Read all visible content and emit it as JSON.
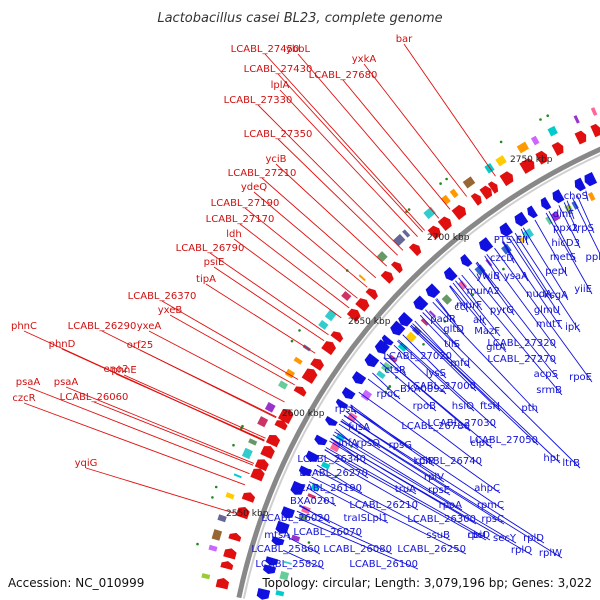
{
  "title": "Lactobacillus casei BL23, complete genome",
  "footer": {
    "accession": "Accession: NC_010999",
    "summary": "Topology: circular; Length: 3,079,196 bp; Genes: 3,022"
  },
  "colors": {
    "forward": "#e01010",
    "reverse": "#1010e0",
    "backbone": "#888888"
  },
  "kbp_labels": [
    "2750 kbp",
    "2700 kbp",
    "2650 kbp",
    "2600 kbp",
    "2550 kbp"
  ],
  "forward_labels": [
    "bar",
    "yxkA",
    "LCABL_27450",
    "ybbL",
    "LCABL_27680",
    "LCABL_27430",
    "lplA",
    "LCABL_27330",
    "LCABL_27350",
    "yciB",
    "LCABL_27210",
    "ydeQ",
    "LCABL_27190",
    "LCABL_27170",
    "ldh",
    "LCABL_26790",
    "psiE",
    "tipA",
    "LCABL_26370",
    "yxeB",
    "phnC",
    "LCABL_26290",
    "yxeA",
    "phnD",
    "orf25",
    "eno2",
    "phnE",
    "psaA",
    "psaA",
    "LCABL_26060",
    "czcR",
    "yqiG"
  ],
  "reverse_labels": [
    "choS",
    "dinF",
    "ppx2",
    "trpS",
    "hicD3",
    "metS",
    "ppk",
    "pepI",
    "yiiE",
    "PTS-EII",
    "czcD",
    "ywiB",
    "ysaA",
    "nudA",
    "ksgA",
    "murA2",
    "pyrG",
    "glmU",
    "murF",
    "alr",
    "mutT",
    "ipk",
    "padR",
    "ccl",
    "gltD",
    "MazF",
    "gltA",
    "LCABL_27320",
    "LCABL_27270",
    "tilS",
    "mfd",
    "LCABL_27020",
    "acpS",
    "rpoE",
    "ctsR",
    "lysS",
    "srmB",
    "BXA0092",
    "LCABL_27000",
    "rpoC",
    "rpoB",
    "hslO",
    "ftsH",
    "pth",
    "rpsL",
    "LCABL_27030",
    "fusA",
    "LCABL_26780",
    "infA",
    "rpsO",
    "rpsG",
    "clpC",
    "LCABL_27050",
    "hpt",
    "ltrB",
    "LCABL_26340",
    "rplP",
    "LCABL_26740",
    "LCABL_26270",
    "rplV",
    "LCABL_26190",
    "truA",
    "rpsE",
    "ahpC",
    "BXA0201",
    "LCABL_26210",
    "rpoA",
    "rpmC",
    "LCABL_26020",
    "traISLpl1",
    "LCABL_26300",
    "rpsC",
    "LCABL_26070",
    "ssuB",
    "rpsI",
    "cbiO",
    "secY",
    "rplD",
    "mtsA",
    "LCABL_26080",
    "LCABL_26250",
    "rplO",
    "rplW",
    "LCABL_25860",
    "LCABL_25820",
    "LCABL_26100"
  ]
}
